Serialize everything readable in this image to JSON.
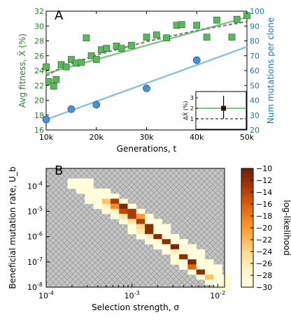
{
  "chart_data": [
    {
      "panel": "A",
      "type": "scatter",
      "xlabel": "Generations, t",
      "x_ticks": [
        "10k",
        "20k",
        "30k",
        "40k",
        "50k"
      ],
      "x_tick_values": [
        10000,
        20000,
        30000,
        40000,
        50000
      ],
      "xlim": [
        10000,
        50000
      ],
      "grid": false,
      "left_axis": {
        "label": "Avg fitness, X̄ (%)",
        "color": "#1e8a1e",
        "ylim": [
          16,
          32
        ],
        "ticks": [
          "16",
          "18",
          "20",
          "22",
          "24",
          "26",
          "28",
          "30",
          "32"
        ],
        "tick_values": [
          16,
          18,
          20,
          22,
          24,
          26,
          28,
          30,
          32
        ]
      },
      "right_axis": {
        "label": "Num mutations per clone",
        "color": "#1f77b4",
        "ylim": [
          20,
          100
        ],
        "ticks": [
          "20",
          "30",
          "40",
          "50",
          "60",
          "70",
          "80",
          "90",
          "100"
        ],
        "tick_values": [
          20,
          30,
          40,
          50,
          60,
          70,
          80,
          90,
          100
        ]
      },
      "series": [
        {
          "marker": "square",
          "color": "#5cb85c",
          "axis": "left",
          "x": [
            10000,
            10500,
            11500,
            12000,
            13000,
            14000,
            15000,
            16000,
            17000,
            18000,
            19000,
            20000,
            21000,
            22000,
            24000,
            25000,
            27000,
            30000,
            32000,
            34000,
            36000,
            37000,
            40000,
            42000,
            44000,
            47000,
            48000,
            50000
          ],
          "y": [
            24.5,
            22.5,
            21.9,
            22.8,
            24.8,
            24.5,
            25.5,
            25.0,
            25.1,
            28.4,
            26.0,
            25.5,
            26.8,
            27.0,
            27.3,
            27.0,
            27.4,
            28.5,
            28.8,
            28.4,
            30.1,
            30.2,
            30.1,
            28.5,
            30.8,
            28.5,
            30.9,
            31.4
          ]
        },
        {
          "marker": "circle",
          "color": "#4a90d9",
          "axis": "right",
          "x": [
            10000,
            15000,
            20000,
            30000,
            40000
          ],
          "y": [
            27,
            34,
            37,
            48,
            67
          ]
        }
      ],
      "lines": [
        {
          "style": "solid",
          "color": "#7fc97f",
          "axis": "left",
          "x": [
            10000,
            50000
          ],
          "y": [
            23.6,
            31.2
          ]
        },
        {
          "style": "dashed",
          "color": "#7f7f7f",
          "axis": "left",
          "x": [
            10000,
            13000,
            20000,
            30000,
            40000,
            50000
          ],
          "y": [
            23.3,
            24.4,
            26.1,
            27.9,
            29.4,
            30.6
          ]
        },
        {
          "style": "solid",
          "color": "#8cbfe6",
          "axis": "right",
          "x": [
            10000,
            50000
          ],
          "y": [
            27,
            76
          ]
        }
      ],
      "inset": {
        "ylabel": "ΔX̄ (%)",
        "ylim": [
          0,
          3.6
        ],
        "ticks": [
          "1",
          "2",
          "3"
        ],
        "tick_values": [
          1,
          2,
          3
        ],
        "green_level": 2.0,
        "dashed_level": 1.0,
        "point": {
          "x": 0.55,
          "y": 2.0,
          "yerr": [
            1.0,
            3.2
          ]
        }
      }
    },
    {
      "panel": "B",
      "type": "heatmap",
      "xlabel": "Selection strength, σ",
      "ylabel": "Beneficial mutation rate, U_b",
      "x_scale": "log",
      "y_scale": "log",
      "xlim": [
        0.0001,
        0.012
      ],
      "ylim": [
        1e-08,
        0.0005
      ],
      "x_ticks": [
        "10",
        "10",
        "10"
      ],
      "x_tick_exponents": [
        "-4",
        "-3",
        "-2"
      ],
      "x_tick_values": [
        0.0001,
        0.001,
        0.01
      ],
      "y_ticks": [
        "10",
        "10",
        "10",
        "10",
        "10"
      ],
      "y_tick_exponents": [
        "-4",
        "-5",
        "-6",
        "-7",
        "-8"
      ],
      "y_tick_values": [
        0.0001,
        1e-05,
        1e-06,
        1e-07,
        1e-08
      ],
      "colorbar": {
        "label": "log-likelihood",
        "range": [
          -30,
          -10
        ],
        "ticks": [
          "−10",
          "−12",
          "−14",
          "−16",
          "−18",
          "−20",
          "−22",
          "−24",
          "−26",
          "−28",
          "−30"
        ],
        "tick_values": [
          -10,
          -12,
          -14,
          -16,
          -18,
          -20,
          -22,
          -24,
          -26,
          -28,
          -30
        ]
      },
      "masked_region": "hatched gray",
      "cells_xlog_step": 0.1,
      "cells_ylog_step": 0.2,
      "cells": [
        {
          "xlog": -3.7,
          "ylog": -3.8,
          "v": -29.5
        },
        {
          "xlog": -3.6,
          "ylog": -3.8,
          "v": -29.5
        },
        {
          "xlog": -3.5,
          "ylog": -3.8,
          "v": -29.5
        },
        {
          "xlog": -3.7,
          "ylog": -4.0,
          "v": -29.5
        },
        {
          "xlog": -3.6,
          "ylog": -4.0,
          "v": -29.5
        },
        {
          "xlog": -3.5,
          "ylog": -4.0,
          "v": -29.5
        },
        {
          "xlog": -3.6,
          "ylog": -4.2,
          "v": -29.5
        },
        {
          "xlog": -3.5,
          "ylog": -4.2,
          "v": -29.5
        },
        {
          "xlog": -3.4,
          "ylog": -4.2,
          "v": -29.5
        },
        {
          "xlog": -3.3,
          "ylog": -4.2,
          "v": -29.5
        },
        {
          "xlog": -3.5,
          "ylog": -4.4,
          "v": -29.5
        },
        {
          "xlog": -3.4,
          "ylog": -4.4,
          "v": -29.5
        },
        {
          "xlog": -3.3,
          "ylog": -4.4,
          "v": -29.5
        },
        {
          "xlog": -3.2,
          "ylog": -4.4,
          "v": -29.5
        },
        {
          "xlog": -3.5,
          "ylog": -4.6,
          "v": -29.5
        },
        {
          "xlog": -3.4,
          "ylog": -4.6,
          "v": -29.5
        },
        {
          "xlog": -3.3,
          "ylog": -4.6,
          "v": -22
        },
        {
          "xlog": -3.2,
          "ylog": -4.6,
          "v": -12
        },
        {
          "xlog": -3.1,
          "ylog": -4.6,
          "v": -28
        },
        {
          "xlog": -3.4,
          "ylog": -4.8,
          "v": -29.5
        },
        {
          "xlog": -3.3,
          "ylog": -4.8,
          "v": -27
        },
        {
          "xlog": -3.2,
          "ylog": -4.8,
          "v": -18
        },
        {
          "xlog": -3.1,
          "ylog": -4.8,
          "v": -10.5
        },
        {
          "xlog": -3.0,
          "ylog": -4.8,
          "v": -29.5
        },
        {
          "xlog": -3.3,
          "ylog": -5.0,
          "v": -29.5
        },
        {
          "xlog": -3.2,
          "ylog": -5.0,
          "v": -27
        },
        {
          "xlog": -3.1,
          "ylog": -5.0,
          "v": -13
        },
        {
          "xlog": -3.0,
          "ylog": -5.0,
          "v": -12
        },
        {
          "xlog": -2.9,
          "ylog": -5.0,
          "v": -29.5
        },
        {
          "xlog": -3.2,
          "ylog": -5.2,
          "v": -29.5
        },
        {
          "xlog": -3.1,
          "ylog": -5.2,
          "v": -25
        },
        {
          "xlog": -3.0,
          "ylog": -5.2,
          "v": -12
        },
        {
          "xlog": -2.9,
          "ylog": -5.2,
          "v": -19
        },
        {
          "xlog": -2.8,
          "ylog": -5.2,
          "v": -29.5
        },
        {
          "xlog": -3.1,
          "ylog": -5.4,
          "v": -29.5
        },
        {
          "xlog": -3.0,
          "ylog": -5.4,
          "v": -25
        },
        {
          "xlog": -2.9,
          "ylog": -5.4,
          "v": -12
        },
        {
          "xlog": -2.8,
          "ylog": -5.4,
          "v": -29.5
        },
        {
          "xlog": -2.7,
          "ylog": -5.4,
          "v": -29.5
        },
        {
          "xlog": -3.0,
          "ylog": -5.6,
          "v": -29.5
        },
        {
          "xlog": -2.9,
          "ylog": -5.6,
          "v": -24
        },
        {
          "xlog": -2.8,
          "ylog": -5.6,
          "v": -11
        },
        {
          "xlog": -2.7,
          "ylog": -5.6,
          "v": -29.5
        },
        {
          "xlog": -2.6,
          "ylog": -5.6,
          "v": -29.5
        },
        {
          "xlog": -3.0,
          "ylog": -5.8,
          "v": -29.5
        },
        {
          "xlog": -2.9,
          "ylog": -5.8,
          "v": -26
        },
        {
          "xlog": -2.8,
          "ylog": -5.8,
          "v": -11
        },
        {
          "xlog": -2.7,
          "ylog": -5.8,
          "v": -29.5
        },
        {
          "xlog": -2.6,
          "ylog": -5.8,
          "v": -29.5
        },
        {
          "xlog": -2.9,
          "ylog": -6.0,
          "v": -29.5
        },
        {
          "xlog": -2.8,
          "ylog": -6.0,
          "v": -27
        },
        {
          "xlog": -2.7,
          "ylog": -6.0,
          "v": -11
        },
        {
          "xlog": -2.6,
          "ylog": -6.0,
          "v": -29.5
        },
        {
          "xlog": -2.5,
          "ylog": -6.0,
          "v": -29.5
        },
        {
          "xlog": -2.8,
          "ylog": -6.2,
          "v": -29.5
        },
        {
          "xlog": -2.7,
          "ylog": -6.2,
          "v": -29
        },
        {
          "xlog": -2.6,
          "ylog": -6.2,
          "v": -11
        },
        {
          "xlog": -2.5,
          "ylog": -6.2,
          "v": -29.5
        },
        {
          "xlog": -2.4,
          "ylog": -6.2,
          "v": -29.5
        },
        {
          "xlog": -2.7,
          "ylog": -6.4,
          "v": -29.5
        },
        {
          "xlog": -2.6,
          "ylog": -6.4,
          "v": -29.5
        },
        {
          "xlog": -2.5,
          "ylog": -6.4,
          "v": -10.5
        },
        {
          "xlog": -2.4,
          "ylog": -6.4,
          "v": -29.5
        },
        {
          "xlog": -2.3,
          "ylog": -6.4,
          "v": -29.5
        },
        {
          "xlog": -2.6,
          "ylog": -6.6,
          "v": -29.5
        },
        {
          "xlog": -2.5,
          "ylog": -6.6,
          "v": -27
        },
        {
          "xlog": -2.4,
          "ylog": -6.6,
          "v": -29.5
        },
        {
          "xlog": -2.3,
          "ylog": -6.6,
          "v": -29.5
        },
        {
          "xlog": -2.2,
          "ylog": -6.6,
          "v": -29.5
        },
        {
          "xlog": -2.5,
          "ylog": -6.8,
          "v": -29.5
        },
        {
          "xlog": -2.4,
          "ylog": -6.8,
          "v": -11
        },
        {
          "xlog": -2.3,
          "ylog": -6.8,
          "v": -29.5
        },
        {
          "xlog": -2.2,
          "ylog": -6.8,
          "v": -29.5
        },
        {
          "xlog": -2.5,
          "ylog": -7.0,
          "v": -29.5
        },
        {
          "xlog": -2.4,
          "ylog": -7.0,
          "v": -29.5
        },
        {
          "xlog": -2.3,
          "ylog": -7.0,
          "v": -10.5
        },
        {
          "xlog": -2.2,
          "ylog": -7.0,
          "v": -29.5
        },
        {
          "xlog": -2.1,
          "ylog": -7.0,
          "v": -29.5
        },
        {
          "xlog": -2.4,
          "ylog": -7.2,
          "v": -29.5
        },
        {
          "xlog": -2.3,
          "ylog": -7.2,
          "v": -15
        },
        {
          "xlog": -2.2,
          "ylog": -7.2,
          "v": -29.5
        },
        {
          "xlog": -2.1,
          "ylog": -7.2,
          "v": -29.5
        },
        {
          "xlog": -2.0,
          "ylog": -7.2,
          "v": -29.5
        },
        {
          "xlog": -2.3,
          "ylog": -7.4,
          "v": -29.5
        },
        {
          "xlog": -2.2,
          "ylog": -7.4,
          "v": -11
        },
        {
          "xlog": -2.1,
          "ylog": -7.4,
          "v": -29.5
        },
        {
          "xlog": -2.0,
          "ylog": -7.4,
          "v": -29.5
        },
        {
          "xlog": -2.2,
          "ylog": -7.6,
          "v": -29.5
        },
        {
          "xlog": -2.1,
          "ylog": -7.6,
          "v": -22
        },
        {
          "xlog": -2.0,
          "ylog": -7.6,
          "v": -29.5
        },
        {
          "xlog": -1.9,
          "ylog": -7.6,
          "v": -29.5
        },
        {
          "xlog": -2.1,
          "ylog": -7.8,
          "v": -29.5
        },
        {
          "xlog": -2.0,
          "ylog": -7.8,
          "v": -29.5
        },
        {
          "xlog": -1.9,
          "ylog": -7.8,
          "v": -29.5
        },
        {
          "xlog": -2.0,
          "ylog": -8.0,
          "v": -29.5
        },
        {
          "xlog": -1.9,
          "ylog": -8.0,
          "v": -29.5
        }
      ]
    }
  ],
  "panel_labels": {
    "a": "A",
    "b": "B"
  }
}
